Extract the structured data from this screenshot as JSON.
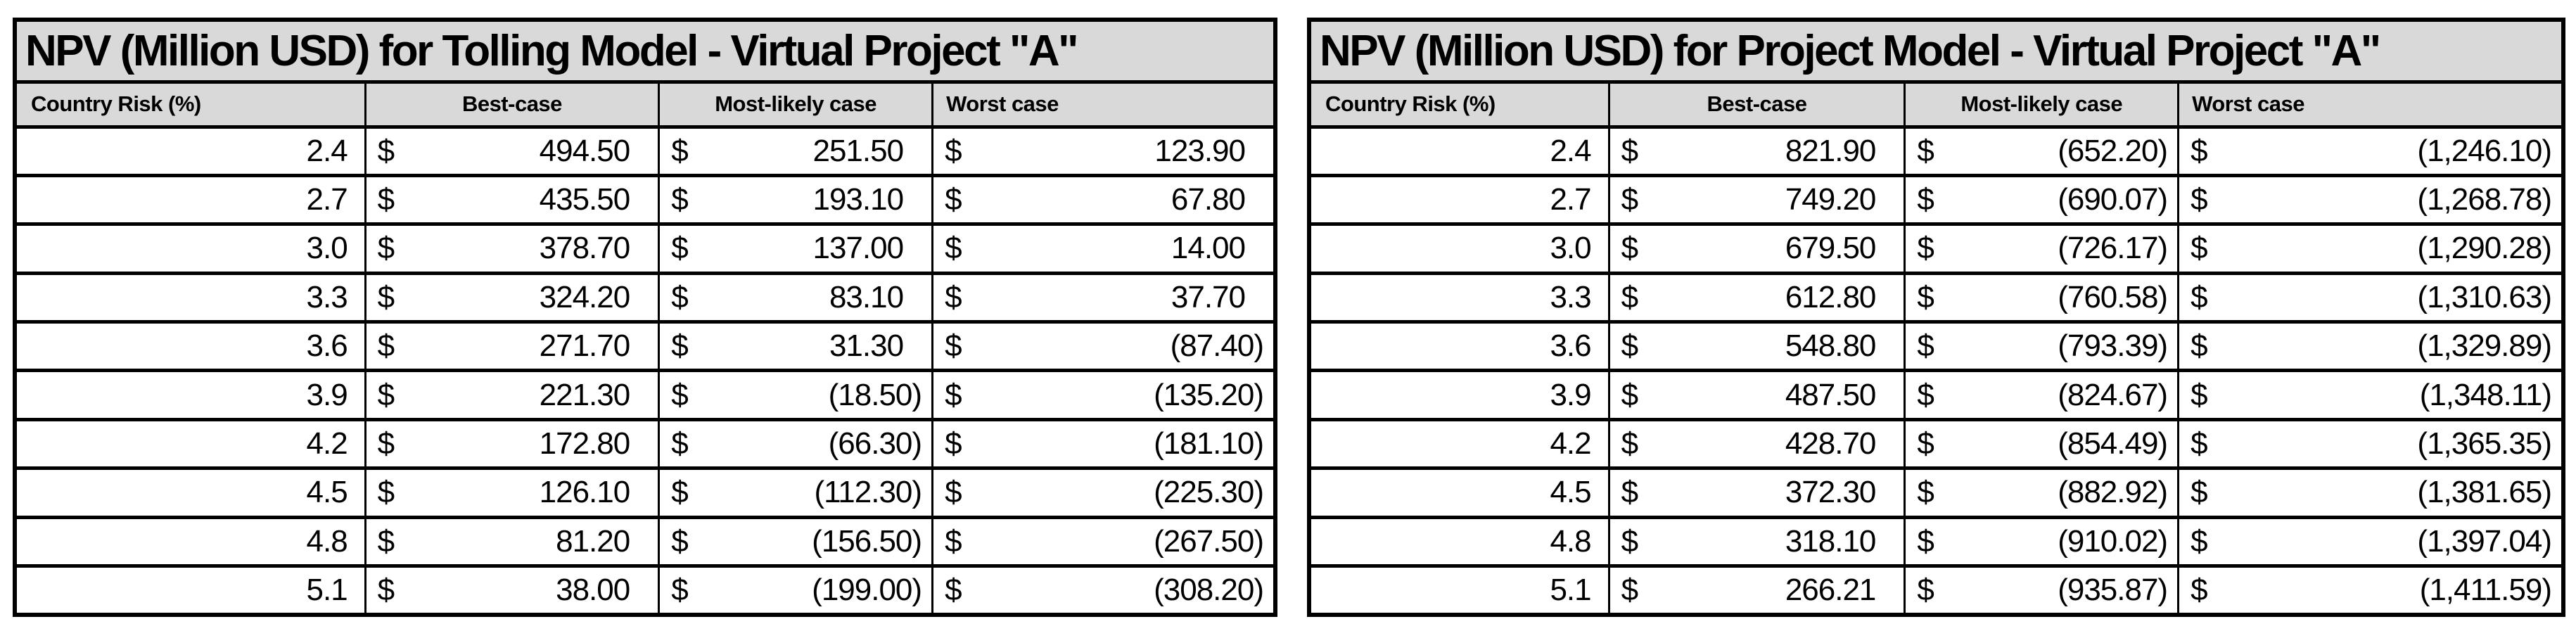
{
  "colors": {
    "header_bg": "#D9D9D9",
    "border": "#000000",
    "text": "#000000",
    "row_bg": "#FFFFFF"
  },
  "tables": [
    {
      "title": "NPV (Million USD) for Tolling Model - Virtual Project \"A\"",
      "currency_symbol": "$",
      "columns": [
        "Country Risk (%)",
        "Best-case",
        "Most-likely case",
        "Worst case"
      ],
      "rows": [
        {
          "risk": "2.4",
          "best": "494.50",
          "likely": "251.50",
          "worst": "123.90"
        },
        {
          "risk": "2.7",
          "best": "435.50",
          "likely": "193.10",
          "worst": "67.80"
        },
        {
          "risk": "3.0",
          "best": "378.70",
          "likely": "137.00",
          "worst": "14.00"
        },
        {
          "risk": "3.3",
          "best": "324.20",
          "likely": "83.10",
          "worst": "37.70"
        },
        {
          "risk": "3.6",
          "best": "271.70",
          "likely": "31.30",
          "worst": "(87.40)"
        },
        {
          "risk": "3.9",
          "best": "221.30",
          "likely": "(18.50)",
          "worst": "(135.20)"
        },
        {
          "risk": "4.2",
          "best": "172.80",
          "likely": "(66.30)",
          "worst": "(181.10)"
        },
        {
          "risk": "4.5",
          "best": "126.10",
          "likely": "(112.30)",
          "worst": "(225.30)"
        },
        {
          "risk": "4.8",
          "best": "81.20",
          "likely": "(156.50)",
          "worst": "(267.50)"
        },
        {
          "risk": "5.1",
          "best": "38.00",
          "likely": "(199.00)",
          "worst": "(308.20)"
        }
      ]
    },
    {
      "title": "NPV (Million USD) for Project Model - Virtual Project \"A\"",
      "currency_symbol": "$",
      "columns": [
        "Country Risk (%)",
        "Best-case",
        "Most-likely case",
        "Worst case"
      ],
      "rows": [
        {
          "risk": "2.4",
          "best": "821.90",
          "likely": "(652.20)",
          "worst": "(1,246.10)"
        },
        {
          "risk": "2.7",
          "best": "749.20",
          "likely": "(690.07)",
          "worst": "(1,268.78)"
        },
        {
          "risk": "3.0",
          "best": "679.50",
          "likely": "(726.17)",
          "worst": "(1,290.28)"
        },
        {
          "risk": "3.3",
          "best": "612.80",
          "likely": "(760.58)",
          "worst": "(1,310.63)"
        },
        {
          "risk": "3.6",
          "best": "548.80",
          "likely": "(793.39)",
          "worst": "(1,329.89)"
        },
        {
          "risk": "3.9",
          "best": "487.50",
          "likely": "(824.67)",
          "worst": "(1,348.11)"
        },
        {
          "risk": "4.2",
          "best": "428.70",
          "likely": "(854.49)",
          "worst": "(1,365.35)"
        },
        {
          "risk": "4.5",
          "best": "372.30",
          "likely": "(882.92)",
          "worst": "(1,381.65)"
        },
        {
          "risk": "4.8",
          "best": "318.10",
          "likely": "(910.02)",
          "worst": "(1,397.04)"
        },
        {
          "risk": "5.1",
          "best": "266.21",
          "likely": "(935.87)",
          "worst": "(1,411.59)"
        }
      ]
    }
  ]
}
